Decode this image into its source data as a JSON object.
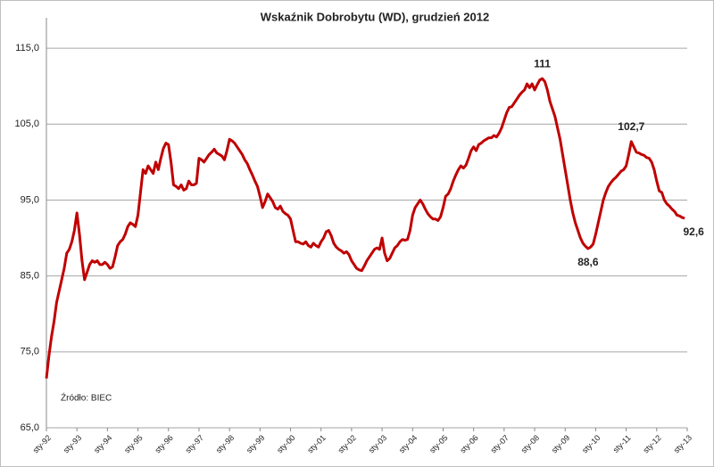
{
  "chart_data": {
    "type": "line",
    "title": "Wskaźnik Dobrobytu (WD), grudzień 2012",
    "note": "Źródło: BIEC",
    "categories": [
      "sty-92",
      null,
      null,
      null,
      null,
      null,
      null,
      null,
      null,
      null,
      null,
      null,
      "sty-93",
      null,
      null,
      null,
      null,
      null,
      null,
      null,
      null,
      null,
      null,
      null,
      "sty-94",
      null,
      null,
      null,
      null,
      null,
      null,
      null,
      null,
      null,
      null,
      null,
      "sty-95",
      null,
      null,
      null,
      null,
      null,
      null,
      null,
      null,
      null,
      null,
      null,
      "sty-96",
      null,
      null,
      null,
      null,
      null,
      null,
      null,
      null,
      null,
      null,
      null,
      "sty-97",
      null,
      null,
      null,
      null,
      null,
      null,
      null,
      null,
      null,
      null,
      null,
      "sty-98",
      null,
      null,
      null,
      null,
      null,
      null,
      null,
      null,
      null,
      null,
      null,
      "sty-99",
      null,
      null,
      null,
      null,
      null,
      null,
      null,
      null,
      null,
      null,
      null,
      "sty-00",
      null,
      null,
      null,
      null,
      null,
      null,
      null,
      null,
      null,
      null,
      null,
      "sty-01",
      null,
      null,
      null,
      null,
      null,
      null,
      null,
      null,
      null,
      null,
      null,
      "sty-02",
      null,
      null,
      null,
      null,
      null,
      null,
      null,
      null,
      null,
      null,
      null,
      "sty-03",
      null,
      null,
      null,
      null,
      null,
      null,
      null,
      null,
      null,
      null,
      null,
      "sty-04",
      null,
      null,
      null,
      null,
      null,
      null,
      null,
      null,
      null,
      null,
      null,
      "sty-05",
      null,
      null,
      null,
      null,
      null,
      null,
      null,
      null,
      null,
      null,
      null,
      "sty-06",
      null,
      null,
      null,
      null,
      null,
      null,
      null,
      null,
      null,
      null,
      null,
      "sty-07",
      null,
      null,
      null,
      null,
      null,
      null,
      null,
      null,
      null,
      null,
      null,
      "sty-08",
      null,
      null,
      null,
      null,
      null,
      null,
      null,
      null,
      null,
      null,
      null,
      "sty-09",
      null,
      null,
      null,
      null,
      null,
      null,
      null,
      null,
      null,
      null,
      null,
      "sty-10",
      null,
      null,
      null,
      null,
      null,
      null,
      null,
      null,
      null,
      null,
      null,
      "sty-11",
      null,
      null,
      null,
      null,
      null,
      null,
      null,
      null,
      null,
      null,
      null,
      "sty-12",
      null,
      null,
      null,
      null,
      null,
      null,
      null,
      null,
      null,
      null,
      null,
      "sty-13"
    ],
    "series": [
      {
        "name": "WD",
        "color": "#c00000",
        "values": [
          71.5,
          74.5,
          77,
          79,
          81.5,
          83,
          84.5,
          86,
          88,
          88.5,
          89.5,
          91,
          93.3,
          90.5,
          87,
          84.5,
          85.5,
          86.5,
          87,
          86.8,
          87,
          86.5,
          86.5,
          86.8,
          86.5,
          86,
          86.2,
          87.5,
          89,
          89.5,
          89.8,
          90.5,
          91.5,
          92,
          91.8,
          91.5,
          93,
          96,
          99,
          98.5,
          99.5,
          99,
          98.5,
          100,
          99,
          100.5,
          101.8,
          102.5,
          102.3,
          100,
          97,
          96.8,
          96.5,
          97,
          96.3,
          96.5,
          97.5,
          97,
          97,
          97.2,
          100.5,
          100.3,
          100,
          100.5,
          101,
          101.3,
          101.7,
          101.2,
          101,
          100.8,
          100.3,
          101.5,
          103,
          102.8,
          102.5,
          102,
          101.5,
          101,
          100.3,
          99.8,
          99,
          98.3,
          97.5,
          96.8,
          95.5,
          94,
          94.8,
          95.8,
          95.3,
          94.8,
          94,
          93.8,
          94.2,
          93.5,
          93.2,
          93,
          92.5,
          91,
          89.5,
          89.5,
          89.3,
          89.2,
          89.5,
          89,
          88.8,
          89.3,
          89,
          88.8,
          89.5,
          90,
          90.8,
          91,
          90.3,
          89.3,
          88.8,
          88.5,
          88.3,
          88,
          88.2,
          87.8,
          87,
          86.5,
          86,
          85.8,
          85.7,
          86.3,
          87,
          87.5,
          88,
          88.5,
          88.7,
          88.5,
          90,
          88,
          87,
          87.3,
          88,
          88.7,
          89,
          89.5,
          89.8,
          89.7,
          89.8,
          91,
          93,
          94,
          94.5,
          95,
          94.5,
          93.8,
          93.2,
          92.8,
          92.5,
          92.5,
          92.3,
          92.8,
          94,
          95.5,
          95.8,
          96.5,
          97.5,
          98.3,
          99,
          99.5,
          99.2,
          99.6,
          100.5,
          101.5,
          102,
          101.5,
          102.3,
          102.5,
          102.8,
          103,
          103.2,
          103.2,
          103.5,
          103.3,
          103.8,
          104.5,
          105.5,
          106.5,
          107.2,
          107.3,
          107.8,
          108.3,
          108.8,
          109.2,
          109.5,
          110.3,
          109.8,
          110.3,
          109.5,
          110.2,
          110.8,
          111,
          110.6,
          109.5,
          108,
          107,
          106,
          104.5,
          103,
          101,
          99,
          97,
          95,
          93.3,
          92,
          91,
          90,
          89.3,
          88.9,
          88.6,
          88.8,
          89.2,
          90.5,
          92,
          93.5,
          95,
          96,
          96.8,
          97.3,
          97.7,
          98,
          98.4,
          98.8,
          99,
          99.5,
          101,
          102.7,
          102,
          101.3,
          101.2,
          101,
          100.9,
          100.6,
          100.5,
          100,
          99,
          97.5,
          96.2,
          96,
          95,
          94.5,
          94.2,
          93.8,
          93.5,
          93,
          92.9,
          92.7,
          92.6,
          null
        ],
        "value_labels": [
          null,
          null,
          null,
          null,
          null,
          null,
          null,
          null,
          null,
          null,
          null,
          null,
          null,
          null,
          null,
          null,
          null,
          null,
          null,
          null,
          null,
          null,
          null,
          null,
          null,
          null,
          null,
          null,
          null,
          null,
          null,
          null,
          null,
          null,
          null,
          null,
          null,
          null,
          null,
          null,
          null,
          null,
          null,
          null,
          null,
          null,
          null,
          null,
          null,
          null,
          null,
          null,
          null,
          null,
          null,
          null,
          null,
          null,
          null,
          null,
          null,
          null,
          null,
          null,
          null,
          null,
          null,
          null,
          null,
          null,
          null,
          null,
          null,
          null,
          null,
          null,
          null,
          null,
          null,
          null,
          null,
          null,
          null,
          null,
          null,
          null,
          null,
          null,
          null,
          null,
          null,
          null,
          null,
          null,
          null,
          null,
          null,
          null,
          null,
          null,
          null,
          null,
          null,
          null,
          null,
          null,
          null,
          null,
          null,
          null,
          null,
          null,
          null,
          null,
          null,
          null,
          null,
          null,
          null,
          null,
          null,
          null,
          null,
          null,
          null,
          null,
          null,
          null,
          null,
          null,
          null,
          null,
          null,
          null,
          null,
          null,
          null,
          null,
          null,
          null,
          null,
          null,
          null,
          null,
          null,
          null,
          null,
          null,
          null,
          null,
          null,
          null,
          null,
          null,
          null,
          null,
          null,
          null,
          null,
          null,
          null,
          null,
          null,
          null,
          null,
          null,
          null,
          null,
          null,
          null,
          null,
          null,
          null,
          null,
          null,
          null,
          null,
          null,
          null,
          null,
          null,
          null,
          null,
          null,
          null,
          null,
          null,
          null,
          null,
          null,
          null,
          null,
          null,
          null,
          null,
          "111",
          null,
          null,
          null,
          null,
          null,
          null,
          null,
          null,
          null,
          null,
          null,
          null,
          null,
          null,
          null,
          null,
          null,
          "88,6",
          null,
          null,
          null,
          null,
          null,
          null,
          null,
          null,
          null,
          null,
          null,
          null,
          null,
          null,
          null,
          null,
          "102,7",
          null,
          null,
          null,
          null,
          null,
          null,
          null,
          null,
          null,
          null,
          null,
          null,
          null,
          null,
          null,
          null,
          null,
          null,
          null,
          null,
          "92,6",
          null
        ]
      }
    ],
    "ylim": [
      65,
      119
    ],
    "yticks": [
      {
        "value": 65,
        "label": "65,0"
      },
      {
        "value": 75,
        "label": "75,0"
      },
      {
        "value": 85,
        "label": "85,0"
      },
      {
        "value": 95,
        "label": "95,0"
      },
      {
        "value": 105,
        "label": "105,0"
      },
      {
        "value": 115,
        "label": "115,0"
      }
    ],
    "grid": true
  }
}
